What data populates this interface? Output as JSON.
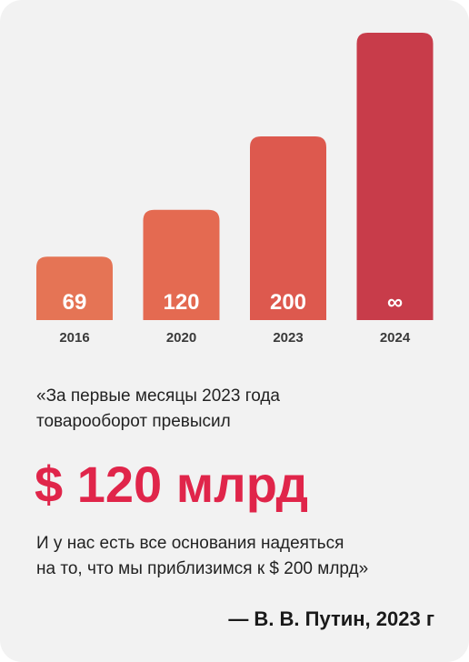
{
  "chart_data": {
    "type": "bar",
    "categories": [
      "2016",
      "2020",
      "2023",
      "2024"
    ],
    "values": [
      69,
      120,
      200,
      null
    ],
    "value_labels": [
      "69",
      "120",
      "200",
      "∞"
    ],
    "colors": [
      "#e57455",
      "#e46a51",
      "#dd594e",
      "#c83c4a"
    ]
  },
  "quote": {
    "intro_lines": [
      "«За первые месяцы 2023 года",
      "товарооборот превысил"
    ],
    "highlight": "$ 120 млрд",
    "outro_lines": [
      "И у нас есть все основания надеяться",
      "на то, что мы приблизимся к $ 200 млрд»"
    ]
  },
  "attribution": "— В. В. Путин, 2023 г"
}
